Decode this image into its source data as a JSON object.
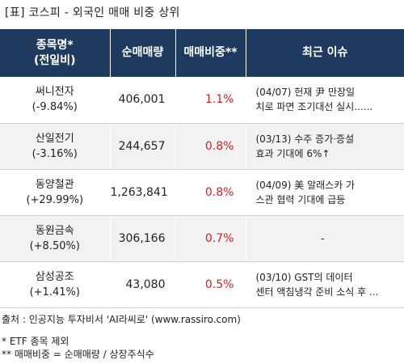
{
  "title": "[표] 코스피 - 외국인 매매 비중 상위",
  "headers": {
    "name_line1": "종목명*",
    "name_line2": "(전일비)",
    "volume": "순매매량",
    "ratio": "매매비중**",
    "issue": "최근 이슈"
  },
  "rows": [
    {
      "name": "써니전자",
      "change": "(-9.84%)",
      "volume": "406,001",
      "ratio": "1.1%",
      "issue1": "(04/07) 헌재 尹 만장일",
      "issue2": "치로 파면 조기대선 실시......"
    },
    {
      "name": "산일전기",
      "change": "(-3.16%)",
      "volume": "244,657",
      "ratio": "0.8%",
      "issue1": "(03/13) 수주 증가·증설",
      "issue2": " 효과 기대에 6%↑"
    },
    {
      "name": "동양철관",
      "change": "(+29.99%)",
      "volume": "1,263,841",
      "ratio": "0.8%",
      "issue1": "(04/09) 美 알래스카 가",
      "issue2": "스관 협력 기대에 급등"
    },
    {
      "name": "동원금속",
      "change": "(+8.50%)",
      "volume": "306,166",
      "ratio": "0.7%",
      "issue1": "-",
      "issue2": ""
    },
    {
      "name": "삼성공조",
      "change": "(+1.41%)",
      "volume": "43,080",
      "ratio": "0.5%",
      "issue1": "(03/10) GST의 데이터",
      "issue2": "센터 액침냉각 준비 소식 후 ..."
    }
  ],
  "source": "출처 : 인공지능 투자비서 'AI라씨로' (www.rassiro.com)",
  "note1": "* ETF 종목 제외",
  "note2": "** 매매비중 = 순매매량 / 상장주식수",
  "colors": {
    "header_bg": "#1f3a5f",
    "ratio_text": "#d62020",
    "alt_row": "#f2f2f2"
  }
}
